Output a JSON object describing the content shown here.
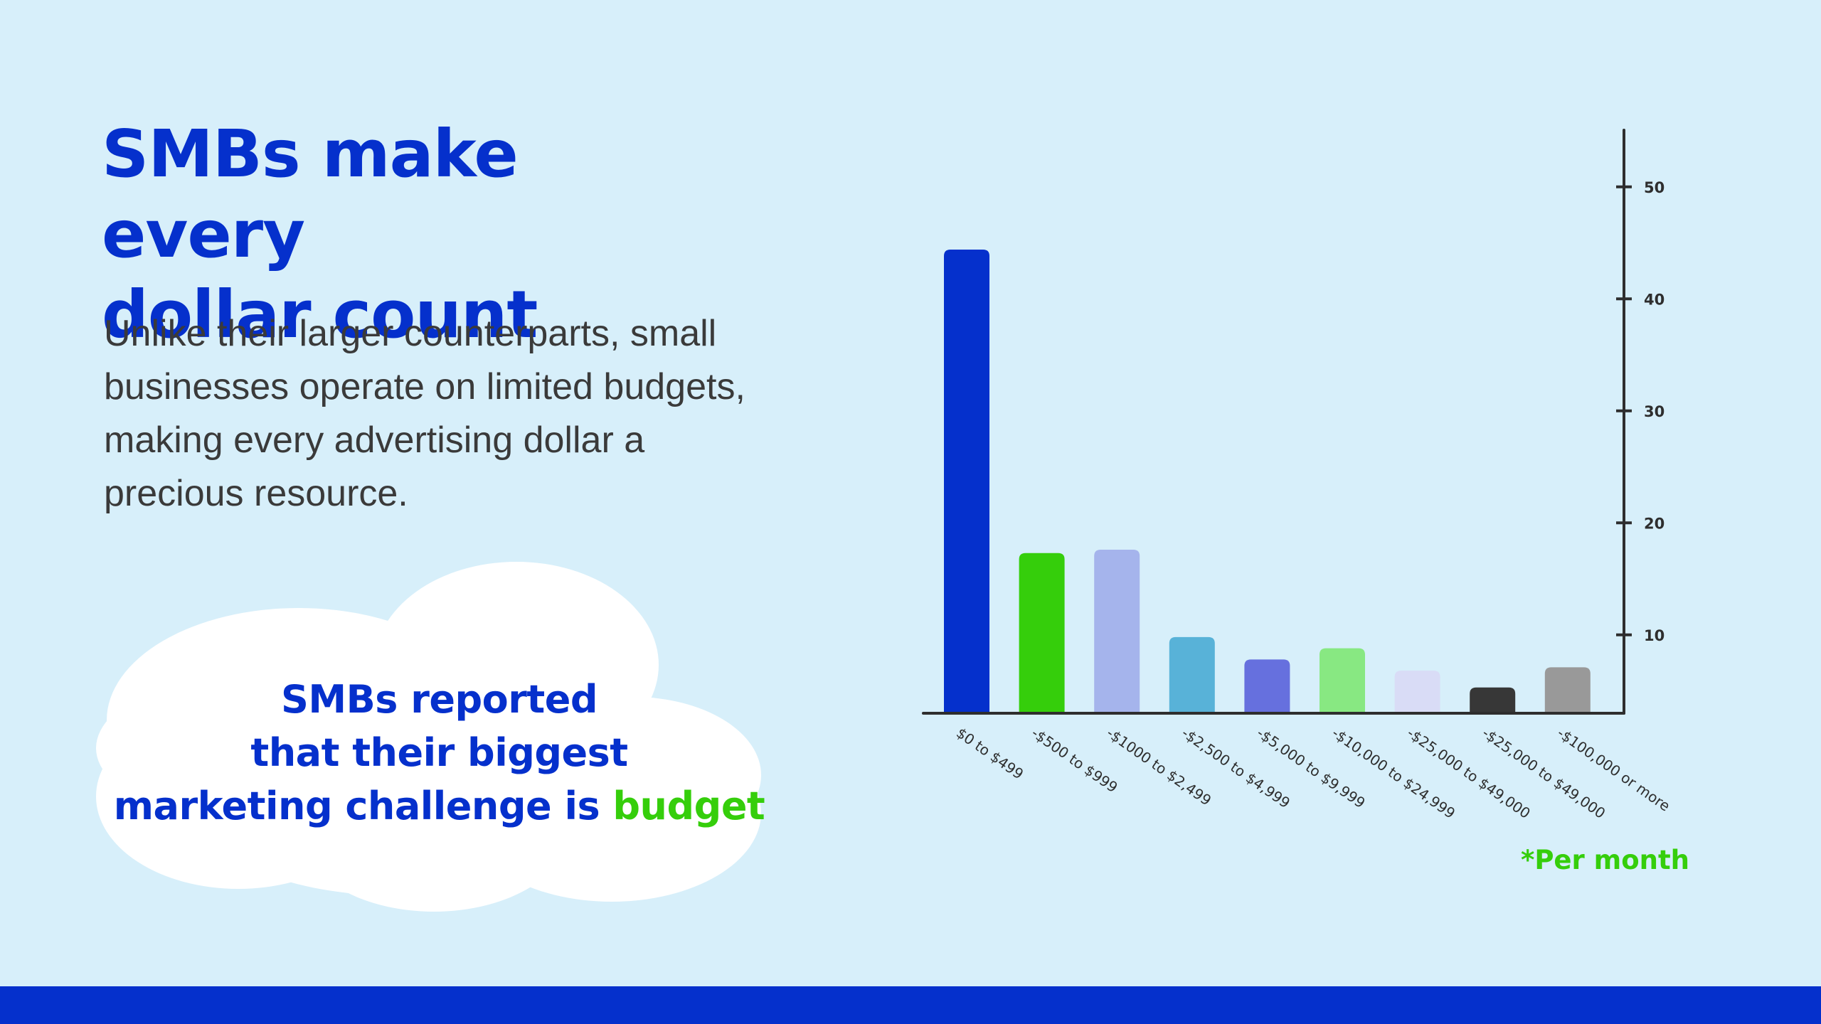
{
  "title_lines": [
    "SMBs make every",
    "dollar count"
  ],
  "description": "Unlike their larger counterparts, small businesses operate on limited budgets, making every advertising dollar a precious resource.",
  "callout": {
    "lines": [
      "SMBs reported",
      "that their biggest",
      "marketing challenge is "
    ],
    "highlight": "budget"
  },
  "footnote": "*Per month",
  "colors": {
    "background": "#d7effa",
    "primary_blue": "#0530cc",
    "accent_green": "#35ce0b",
    "body_text": "#3a3a3a",
    "cloud": "#ffffff"
  },
  "chart_data": {
    "type": "bar",
    "title": "",
    "xlabel": "",
    "ylabel": "",
    "ylim": [
      3,
      55
    ],
    "yticks": [
      10,
      20,
      30,
      40,
      50
    ],
    "y_axis_position": "right",
    "grid": false,
    "categories": [
      "$0 to $499",
      "-$500 to $999",
      "-$1000 to $2,499",
      "-$2,500 to $4,999",
      "-$5,000 to $9,999",
      "-$10,000 to $24,999",
      "-$25,000 to $49,000",
      "-$25,000 to $49,000",
      "-$100,000 or more"
    ],
    "values": [
      44.4,
      17.3,
      17.6,
      9.8,
      7.8,
      8.8,
      6.8,
      5.3,
      7.1
    ],
    "bar_colors": [
      "#0530cc",
      "#35ce0b",
      "#a5b4ec",
      "#58b2d8",
      "#6670de",
      "#88e882",
      "#d9dcf6",
      "#373737",
      "#999999"
    ]
  }
}
